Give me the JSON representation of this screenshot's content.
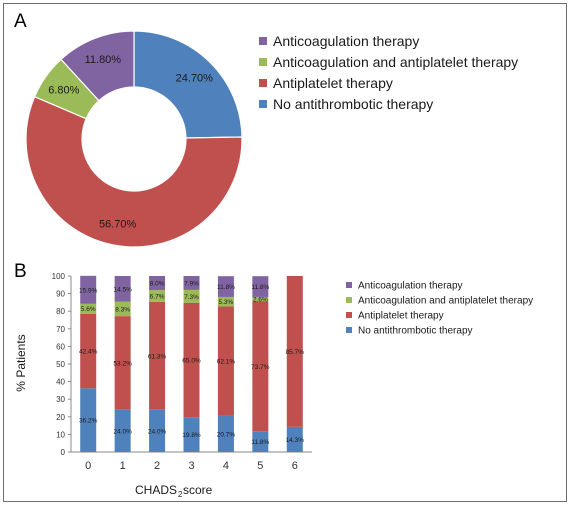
{
  "chart_data": [
    {
      "type": "pie",
      "panel": "A",
      "donut": true,
      "legend": "right",
      "slices": [
        {
          "name": "No antithrombotic therapy",
          "value": 24.7,
          "label": "24.70%",
          "color": "#4f81bd"
        },
        {
          "name": "Antiplatelet therapy",
          "value": 56.7,
          "label": "56.70%",
          "color": "#c0504d"
        },
        {
          "name": "Anticoagulation and antiplatelet therapy",
          "value": 6.8,
          "label": "6.80%",
          "color": "#9bbb59"
        },
        {
          "name": "Anticoagulation therapy",
          "value": 11.8,
          "label": "11.80%",
          "color": "#8064a2"
        }
      ],
      "legend_entries": [
        {
          "name": "Anticoagulation therapy",
          "color": "#8064a2"
        },
        {
          "name": "Anticoagulation and antiplatelet therapy",
          "color": "#9bbb59"
        },
        {
          "name": "Antiplatelet therapy",
          "color": "#c0504d"
        },
        {
          "name": "No antithrombotic therapy",
          "color": "#4f81bd"
        }
      ]
    },
    {
      "type": "bar",
      "panel": "B",
      "stacked": true,
      "categories": [
        "0",
        "1",
        "2",
        "3",
        "4",
        "5",
        "6"
      ],
      "xlabel": "CHADS",
      "xlabel_sub": "2",
      "xlabel_suffix": " score",
      "ylabel": "% Patients",
      "ylim": [
        0,
        100
      ],
      "yticks": [
        "0",
        "10",
        "20",
        "30",
        "40",
        "50",
        "60",
        "70",
        "80",
        "90",
        "100"
      ],
      "grid": false,
      "legend": "right",
      "series": [
        {
          "name": "No antithrombotic therapy",
          "color": "#4f81bd",
          "values": [
            36.2,
            24.0,
            24.0,
            19.8,
            20.7,
            11.8,
            14.3
          ],
          "labels": [
            "36.2%",
            "24.0%",
            "24.0%",
            "19.8%",
            "20.7%",
            "11.8%",
            "14.3%"
          ]
        },
        {
          "name": "Antiplatelet therapy",
          "color": "#c0504d",
          "values": [
            42.4,
            53.2,
            61.3,
            65.0,
            62.1,
            73.7,
            85.7
          ],
          "labels": [
            "42.4%",
            "53.2%",
            "61.3%",
            "65.0%",
            "62.1%",
            "73.7%",
            "85.7%"
          ]
        },
        {
          "name": "Anticoagulation and antiplatelet therapy",
          "color": "#9bbb59",
          "values": [
            5.6,
            8.3,
            6.7,
            7.3,
            5.3,
            2.6,
            0
          ],
          "labels": [
            "5.6%",
            "8.3%",
            "6.7%",
            "7.3%",
            "5.3%",
            "2.6%",
            ""
          ]
        },
        {
          "name": "Anticoagulation therapy",
          "color": "#8064a2",
          "values": [
            15.9,
            14.5,
            8.0,
            7.9,
            11.8,
            11.8,
            0
          ],
          "labels": [
            "15.9%",
            "14.5%",
            "8.0%",
            "7.9%",
            "11.8%",
            "11.8%",
            ""
          ]
        }
      ],
      "legend_entries": [
        {
          "name": "Anticoagulation therapy",
          "color": "#8064a2"
        },
        {
          "name": "Anticoagulation and antiplatelet therapy",
          "color": "#9bbb59"
        },
        {
          "name": "Antiplatelet therapy",
          "color": "#c0504d"
        },
        {
          "name": "No antithrombotic therapy",
          "color": "#4f81bd"
        }
      ]
    }
  ]
}
